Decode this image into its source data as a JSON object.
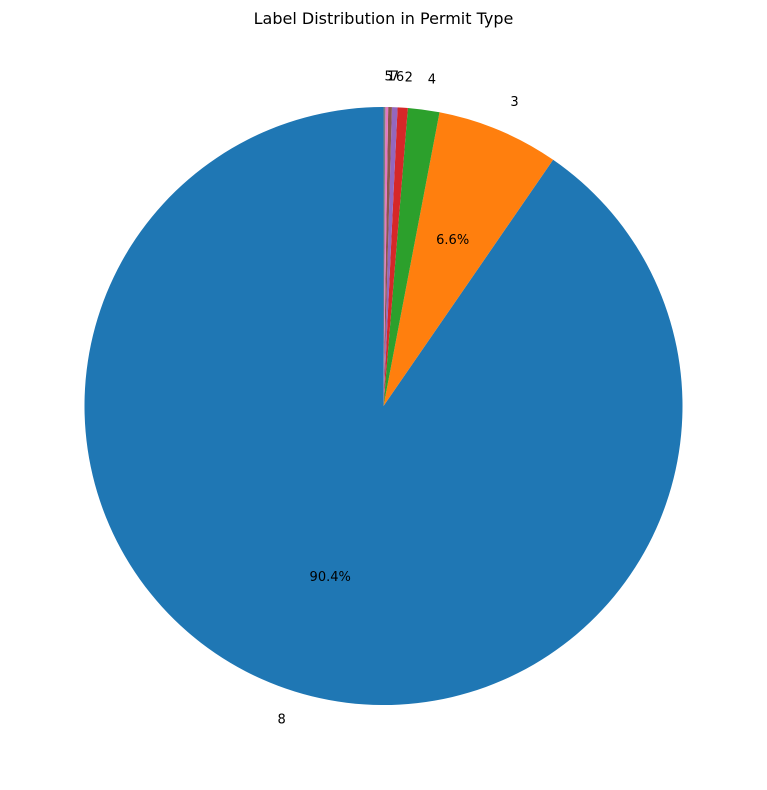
{
  "chart_data": {
    "type": "pie",
    "title": "Label Distribution in Permit Type",
    "start_angle_deg": 90,
    "direction": "counterclockwise",
    "slices": [
      {
        "label": "8",
        "value": 90.4,
        "pct_label": "90.4%",
        "color": "#1f77b4"
      },
      {
        "label": "3",
        "value": 6.6,
        "pct_label": "6.6%",
        "color": "#ff7f0e"
      },
      {
        "label": "4",
        "value": 1.7,
        "pct_label": "",
        "color": "#2ca02c"
      },
      {
        "label": "2",
        "value": 0.55,
        "pct_label": "",
        "color": "#d62728"
      },
      {
        "label": "6",
        "value": 0.3,
        "pct_label": "",
        "color": "#9467bd"
      },
      {
        "label": "7",
        "value": 0.2,
        "pct_label": "",
        "color": "#8c564b"
      },
      {
        "label": "1",
        "value": 0.15,
        "pct_label": "",
        "color": "#e377c2"
      },
      {
        "label": "5",
        "value": 0.1,
        "pct_label": "",
        "color": "#7f7f7f"
      }
    ]
  }
}
